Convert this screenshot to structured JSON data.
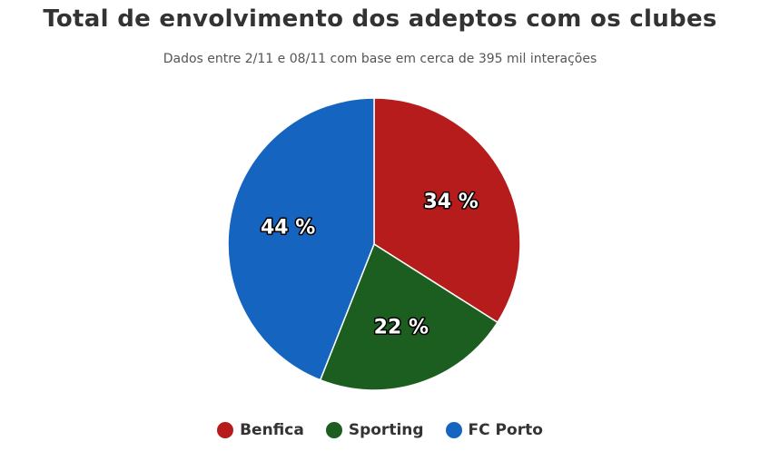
{
  "chart_data": {
    "type": "pie",
    "title": "Total de envolvimento dos adeptos com os clubes",
    "subtitle": "Dados entre 2/11 e 08/11 com base em cerca de 395 mil interações",
    "series": [
      {
        "name": "",
        "slices": [
          {
            "label": "Benfica",
            "value": 34,
            "display": "34 %",
            "color": "#b71c1c"
          },
          {
            "label": "Sporting",
            "value": 22,
            "display": "22 %",
            "color": "#1b5e20"
          },
          {
            "label": "FC Porto",
            "value": 44,
            "display": "44 %",
            "color": "#1565c0"
          }
        ]
      }
    ],
    "legend_position": "bottom"
  }
}
